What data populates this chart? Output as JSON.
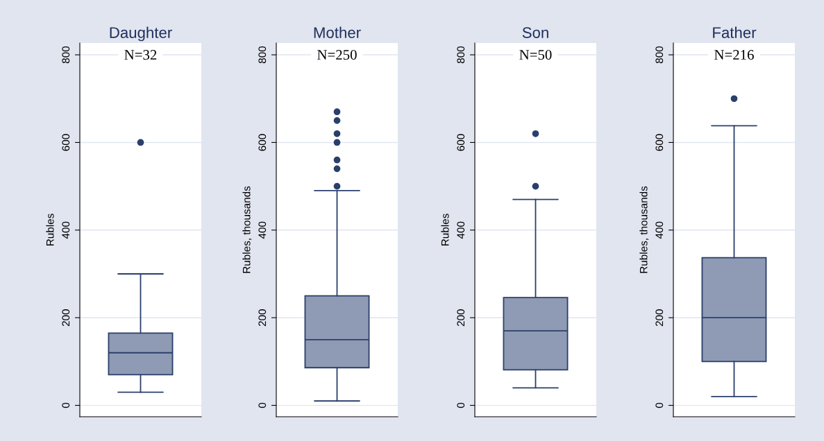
{
  "chart_data": [
    {
      "type": "box",
      "title": "Daughter",
      "ylabel": "Rubles",
      "annotations": [
        "N=32"
      ],
      "categories": [
        null
      ],
      "color": "#8f9bb4",
      "ylim": [
        -26,
        827
      ],
      "yticks": [
        0,
        200,
        400,
        600,
        800
      ],
      "grid": "y",
      "tick_labels": "y",
      "boxes": [
        {
          "low": 30,
          "q1": 70,
          "median": 120,
          "q3": 165,
          "high": 300,
          "outliers": [
            600
          ]
        }
      ]
    },
    {
      "type": "box",
      "title": "Mother",
      "ylabel": "Rubles, thousands",
      "annotations": [
        "N=250"
      ],
      "categories": [
        null
      ],
      "color": "#8f9bb4",
      "ylim": [
        -26,
        827
      ],
      "yticks": [
        0,
        200,
        400,
        600,
        800
      ],
      "grid": "y",
      "tick_labels": "y",
      "boxes": [
        {
          "low": 10,
          "q1": 86,
          "median": 150,
          "q3": 250,
          "high": 490,
          "outliers": [
            500,
            540,
            560,
            600,
            620,
            650,
            670
          ]
        }
      ]
    },
    {
      "type": "box",
      "title": "Son",
      "ylabel": "Rubles",
      "annotations": [
        "N=50"
      ],
      "categories": [
        null
      ],
      "color": "#8f9bb4",
      "ylim": [
        -26,
        827
      ],
      "yticks": [
        0,
        200,
        400,
        600,
        800
      ],
      "grid": "y",
      "tick_labels": "y",
      "boxes": [
        {
          "low": 40,
          "q1": 81,
          "median": 170,
          "q3": 246,
          "high": 470,
          "outliers": [
            500,
            620
          ]
        }
      ]
    },
    {
      "type": "box",
      "title": "Father",
      "ylabel": "Rubles, thousands",
      "annotations": [
        "N=216"
      ],
      "categories": [
        null
      ],
      "color": "#8f9bb4",
      "ylim": [
        -26,
        827
      ],
      "yticks": [
        0,
        200,
        400,
        600,
        800
      ],
      "grid": "y",
      "tick_labels": "y",
      "boxes": [
        {
          "low": 20,
          "q1": 100,
          "median": 200,
          "q3": 337,
          "high": 638,
          "outliers": [
            700
          ]
        }
      ]
    }
  ]
}
